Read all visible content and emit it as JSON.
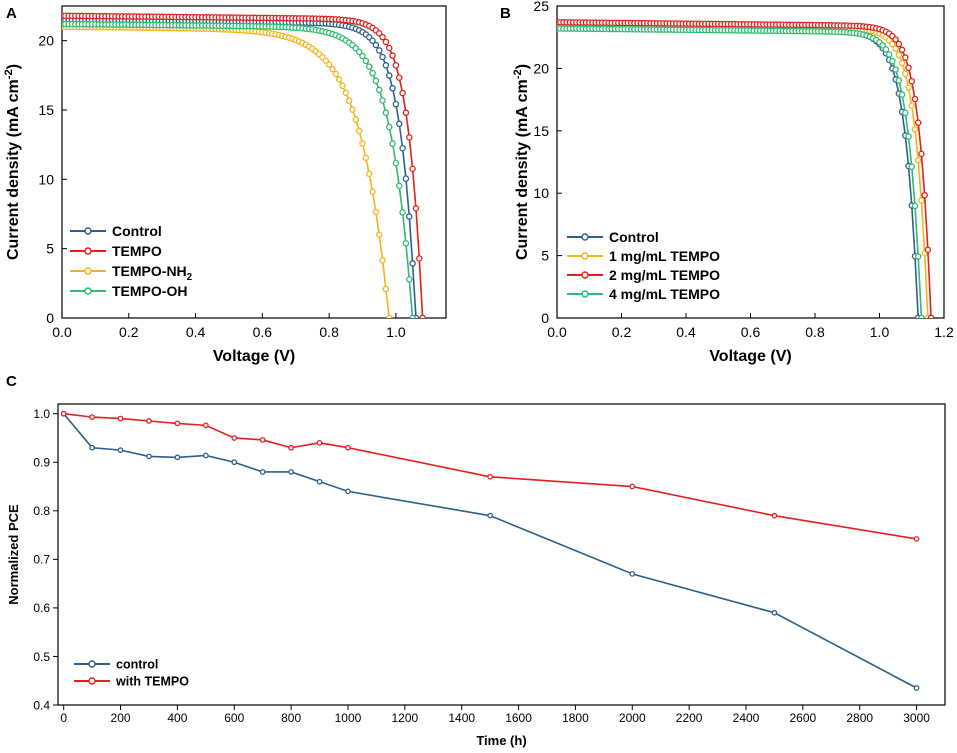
{
  "chart_data": [
    {
      "panel": "A",
      "type": "line",
      "xlabel": "Voltage (V)",
      "ylabel_main": "Current density (mA cm",
      "ylabel_sup": "-2",
      "ylabel_close": ")",
      "xlim": [
        0.0,
        1.15
      ],
      "ylim": [
        0,
        22.5
      ],
      "xticks": [
        0.0,
        0.2,
        0.4,
        0.6,
        0.8,
        1.0
      ],
      "xtick_labels": [
        "0.0",
        "0.2",
        "0.4",
        "0.6",
        "0.8",
        "1.0"
      ],
      "yticks": [
        0,
        5,
        10,
        15,
        20
      ],
      "ytick_labels": [
        "0",
        "5",
        "10",
        "15",
        "20"
      ],
      "legend_position": "bottom-left",
      "series": [
        {
          "name": "Control",
          "label_main": "Control",
          "label_sub": "",
          "color": "#2e5f8a",
          "jsc": 21.5,
          "voc": 1.06,
          "ff": 0.73
        },
        {
          "name": "TEMPO",
          "label_main": "TEMPO",
          "label_sub": "",
          "color": "#e0211d",
          "jsc": 21.8,
          "voc": 1.08,
          "ff": 0.75
        },
        {
          "name": "TEMPO-NH2",
          "label_main": "TEMPO-NH",
          "label_sub": "2",
          "color": "#f2b51b",
          "jsc": 21.0,
          "voc": 0.98,
          "ff": 0.5
        },
        {
          "name": "TEMPO-OH",
          "label_main": "TEMPO-OH",
          "label_sub": "",
          "color": "#2ebb6f",
          "jsc": 21.2,
          "voc": 1.05,
          "ff": 0.62
        }
      ]
    },
    {
      "panel": "B",
      "type": "line",
      "xlabel": "Voltage (V)",
      "ylabel_main": "Current density (mA cm",
      "ylabel_sup": "-2",
      "ylabel_close": ")",
      "xlim": [
        0.0,
        1.2
      ],
      "ylim": [
        0,
        25
      ],
      "xticks": [
        0.0,
        0.2,
        0.4,
        0.6,
        0.8,
        1.0,
        1.2
      ],
      "xtick_labels": [
        "0.0",
        "0.2",
        "0.4",
        "0.6",
        "0.8",
        "1.0",
        "1.2"
      ],
      "yticks": [
        0,
        5,
        10,
        15,
        20,
        25
      ],
      "ytick_labels": [
        "0",
        "5",
        "10",
        "15",
        "20",
        "25"
      ],
      "legend_position": "bottom-left",
      "series": [
        {
          "name": "Control",
          "label_main": "Control",
          "label_sub": "",
          "color": "#2e5f8a",
          "jsc": 23.3,
          "voc": 1.12,
          "ff": 0.77
        },
        {
          "name": "1 mg/mL TEMPO",
          "label_main": "1 mg/mL TEMPO",
          "label_sub": "",
          "color": "#f2b51b",
          "jsc": 23.5,
          "voc": 1.15,
          "ff": 0.78
        },
        {
          "name": "2 mg/mL TEMPO",
          "label_main": "2 mg/mL TEMPO",
          "label_sub": "",
          "color": "#e0211d",
          "jsc": 23.7,
          "voc": 1.16,
          "ff": 0.79
        },
        {
          "name": "4 mg/mL TEMPO",
          "label_main": "4 mg/mL TEMPO",
          "label_sub": "",
          "color": "#2ebb6f",
          "jsc": 23.2,
          "voc": 1.13,
          "ff": 0.77
        }
      ]
    },
    {
      "panel": "C",
      "type": "line",
      "xlabel": "Time (h)",
      "ylabel": "Normalized PCE",
      "xlim": [
        -20,
        3100
      ],
      "ylim": [
        0.4,
        1.02
      ],
      "xticks": [
        0,
        200,
        400,
        600,
        800,
        1000,
        1200,
        1400,
        1600,
        1800,
        2000,
        2200,
        2400,
        2600,
        2800,
        3000
      ],
      "xtick_labels": [
        "0",
        "200",
        "400",
        "600",
        "800",
        "1000",
        "1200",
        "1400",
        "1600",
        "1800",
        "2000",
        "2200",
        "2400",
        "2600",
        "2800",
        "3000"
      ],
      "yticks": [
        0.4,
        0.5,
        0.6,
        0.7,
        0.8,
        0.9,
        1.0
      ],
      "ytick_labels": [
        "0.4",
        "0.5",
        "0.6",
        "0.7",
        "0.8",
        "0.9",
        "1.0"
      ],
      "legend_position": "bottom-left",
      "series": [
        {
          "name": "control",
          "label_main": "control",
          "label_sub": "",
          "color": "#2e5f8a",
          "x": [
            0,
            100,
            200,
            300,
            400,
            500,
            600,
            700,
            800,
            900,
            1000,
            1500,
            2000,
            2500,
            3000
          ],
          "y": [
            1.0,
            0.93,
            0.925,
            0.912,
            0.91,
            0.914,
            0.9,
            0.88,
            0.88,
            0.86,
            0.84,
            0.79,
            0.67,
            0.59,
            0.435
          ]
        },
        {
          "name": "with TEMPO",
          "label_main": "with TEMPO",
          "label_sub": "",
          "color": "#e0211d",
          "x": [
            0,
            100,
            200,
            300,
            400,
            500,
            600,
            700,
            800,
            900,
            1000,
            1500,
            2000,
            2500,
            3000
          ],
          "y": [
            1.0,
            0.993,
            0.99,
            0.985,
            0.98,
            0.976,
            0.95,
            0.946,
            0.93,
            0.94,
            0.93,
            0.87,
            0.85,
            0.79,
            0.742
          ]
        }
      ]
    }
  ],
  "panel_letters": [
    "A",
    "B",
    "C"
  ]
}
